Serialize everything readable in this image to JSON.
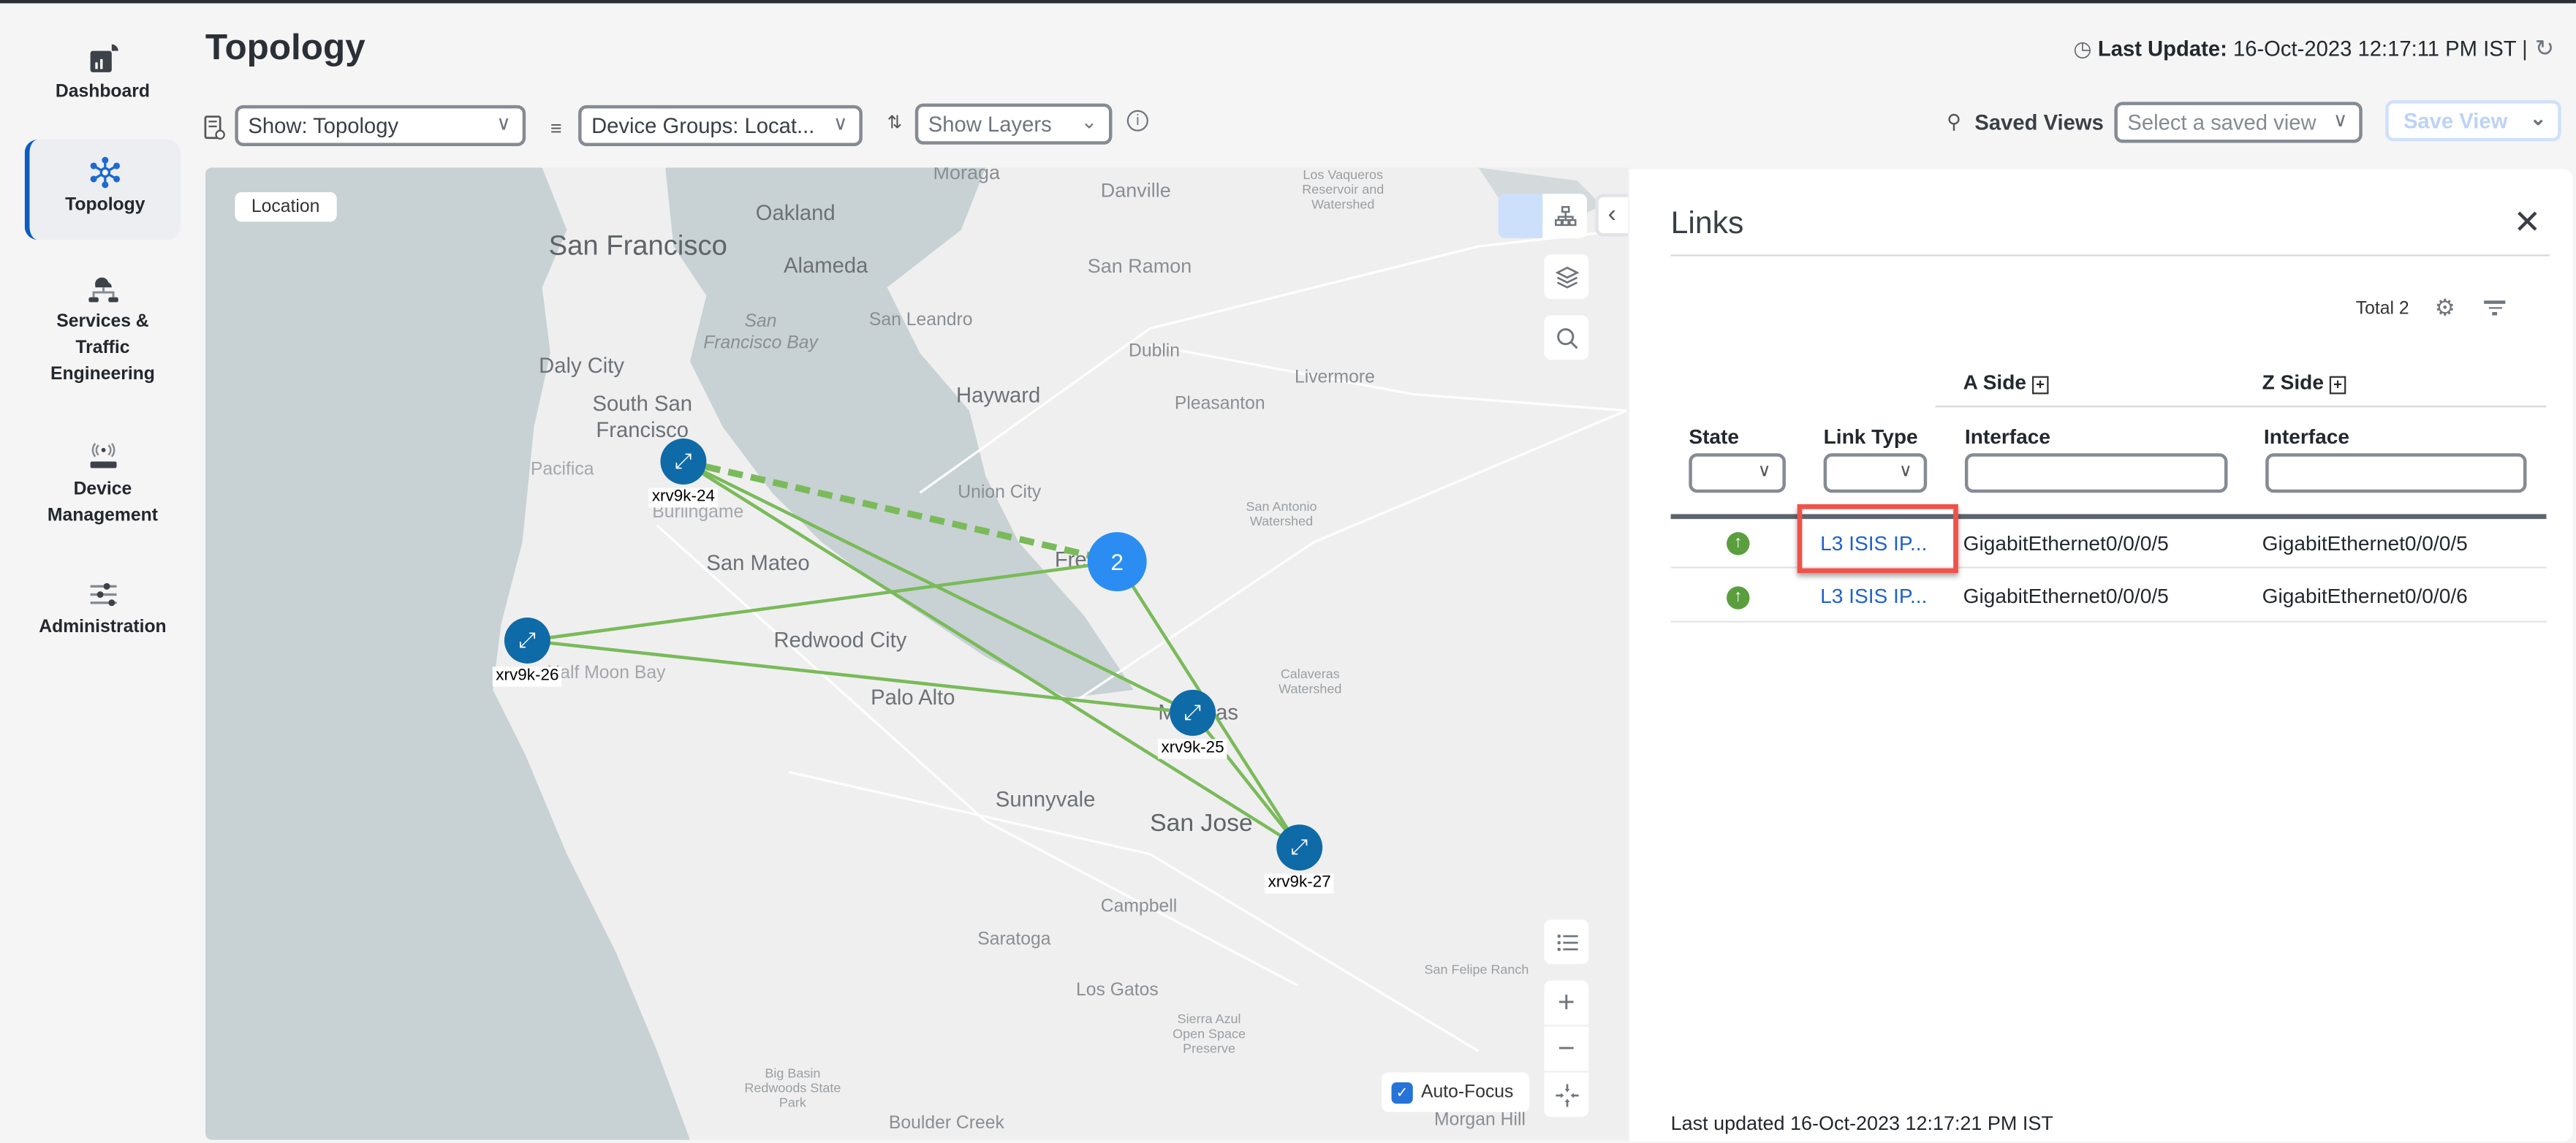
{
  "sidebar": {
    "items": [
      {
        "label": "Dashboard",
        "icon": "dashboard-icon"
      },
      {
        "label": "Topology",
        "icon": "topology-icon",
        "active": true
      },
      {
        "label": "Services & Traffic Engineering",
        "icon": "services-cloud-icon"
      },
      {
        "label": "Device Management",
        "icon": "device-icon"
      },
      {
        "label": "Administration",
        "icon": "sliders-icon"
      }
    ]
  },
  "header": {
    "title": "Topology",
    "last_update_label": "Last Update:",
    "last_update_value": "16-Oct-2023 12:17:11 PM IST"
  },
  "toolbar": {
    "show": "Show: Topology",
    "device_groups": "Device Groups: Locat...",
    "layers": "Show Layers",
    "saved_views_label": "Saved Views",
    "saved_view_placeholder": "Select a saved view",
    "save_view": "Save View"
  },
  "map": {
    "location_button": "Location",
    "labels": [
      "Moraga",
      "Danville",
      "Los Vaqueros Reservoir and Watershed",
      "Oakland",
      "San Francisco",
      "Alameda",
      "San Ramon",
      "San Francisco Bay",
      "San Leandro",
      "Dublin",
      "Livermore",
      "Daly City",
      "Hayward",
      "Pleasanton",
      "South San Francisco",
      "Pacifica",
      "Union City",
      "Burlingame",
      "San Antonio Watershed",
      "San Mateo",
      "Redwood City",
      "Half Moon Bay",
      "Calaveras Watershed",
      "Palo Alto",
      "Sunnyvale",
      "San Jose",
      "Campbell",
      "Saratoga",
      "San Felipe Ranch",
      "Los Gatos",
      "Sierra Azul Open Space Preserve",
      "Big Basin Redwoods State Park",
      "Boulder Creek",
      "Morgan Hill",
      "Fre",
      "M",
      "as"
    ],
    "nodes": [
      {
        "name": "xrv9k-24"
      },
      {
        "name": "xrv9k-26"
      },
      {
        "name": "xrv9k-25"
      },
      {
        "name": "xrv9k-27"
      }
    ],
    "cluster_count": "2",
    "auto_focus": {
      "label": "Auto-Focus",
      "checked": true
    },
    "colors": {
      "link": "#7aba5a",
      "node": "#0f6aa8",
      "cluster": "#2b8df2",
      "water": "#c8d1d3"
    }
  },
  "links_panel": {
    "title": "Links",
    "total": "Total 2",
    "group_headers": {
      "a_side": "A Side",
      "z_side": "Z Side"
    },
    "columns": [
      "State",
      "Link Type",
      "Interface",
      "Interface"
    ],
    "rows": [
      {
        "state": "up",
        "link_type": "L3 ISIS IP...",
        "a_interface": "GigabitEthernet0/0/0/5",
        "z_interface": "GigabitEthernet0/0/0/5"
      },
      {
        "state": "up",
        "link_type": "L3 ISIS IP...",
        "a_interface": "GigabitEthernet0/0/0/5",
        "z_interface": "GigabitEthernet0/0/0/6"
      }
    ],
    "footer": "Last updated 16-Oct-2023 12:17:21 PM IST",
    "highlight_color": "#f0524a"
  }
}
